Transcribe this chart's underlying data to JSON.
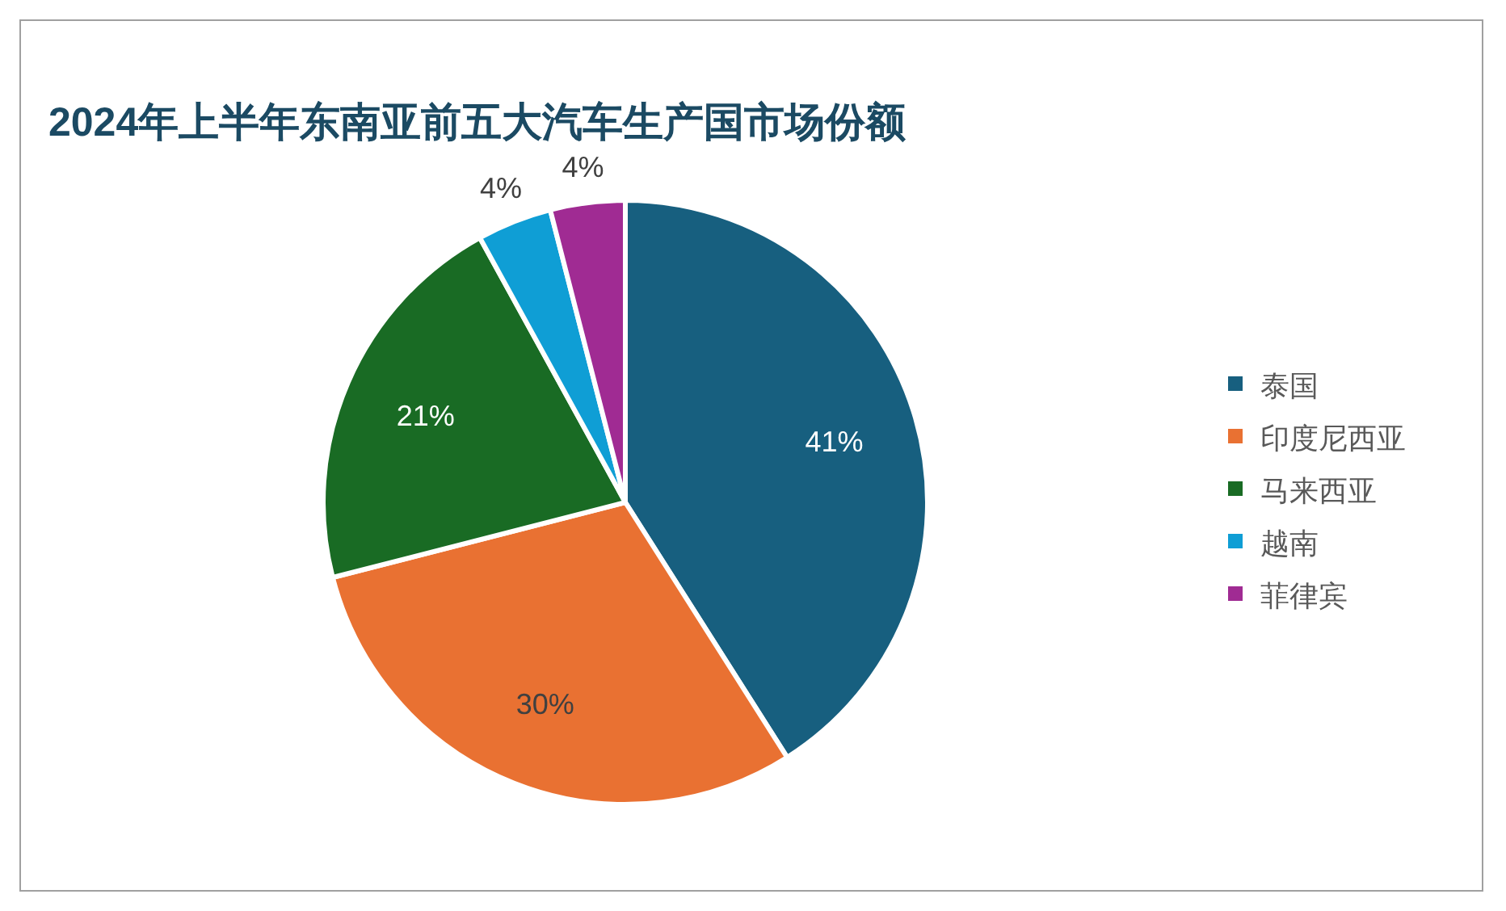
{
  "chart_data": {
    "type": "pie",
    "title": "2024年上半年东南亚前五大汽车生产国市场份额",
    "categories": [
      "泰国",
      "印度尼西亚",
      "马来西亚",
      "越南",
      "菲律宾"
    ],
    "values": [
      41,
      30,
      21,
      4,
      4
    ],
    "value_labels": [
      "41%",
      "30%",
      "21%",
      "4%",
      "4%"
    ],
    "colors": [
      "#175f7f",
      "#e97132",
      "#196b24",
      "#0f9ed5",
      "#a02b93"
    ],
    "legend": "right"
  }
}
